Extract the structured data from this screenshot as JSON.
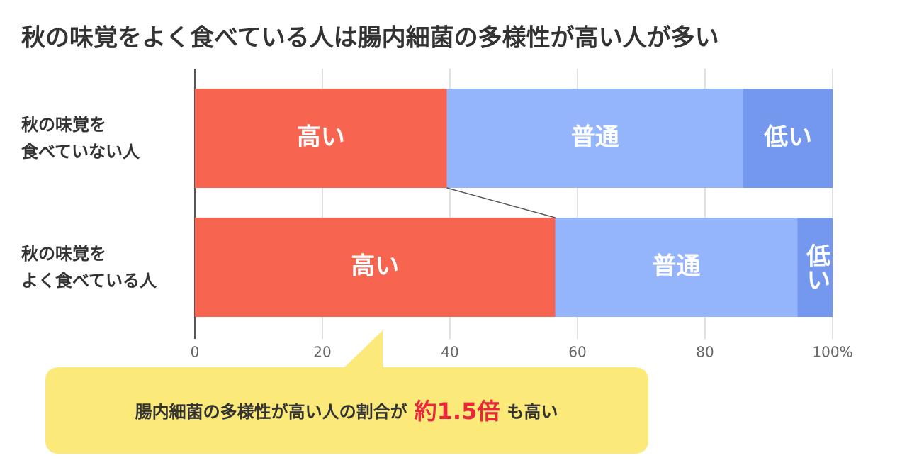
{
  "chart_data": {
    "type": "stacked-barh",
    "title": "秋の味覚をよく食べている人は腸内細菌の多様性が高い人が多い",
    "categories": [
      "秋の味覚を\n食べていない人",
      "秋の味覚を\nよく食べている人"
    ],
    "series": [
      {
        "name": "高い",
        "color": "#f76550",
        "values": [
          39.5,
          56.5
        ]
      },
      {
        "name": "普通",
        "color": "#94b4fb",
        "values": [
          46.5,
          38
        ]
      },
      {
        "name": "低い",
        "color": "#7598ef",
        "values": [
          14,
          5.5
        ]
      }
    ],
    "xlim": [
      0,
      100
    ],
    "xticks": [
      0,
      20,
      40,
      60,
      80,
      {
        "value": 100,
        "label": "100%"
      }
    ],
    "grid": true,
    "annotation": {
      "before": "腸内細菌の多様性が高い人の割合が",
      "highlight": "約1.5倍",
      "after": "も高い"
    }
  }
}
